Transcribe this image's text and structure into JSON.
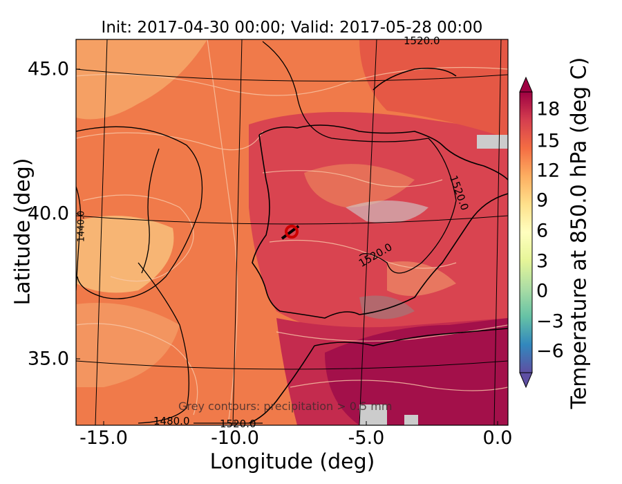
{
  "title": "Init: 2017-04-30 00:00; Valid: 2017-05-28 00:00",
  "axes": {
    "xlabel": "Longitude (deg)",
    "ylabel": "Latitude (deg)",
    "xticks": [
      "-15.0",
      "-10.0",
      "-5.0",
      "0.0"
    ],
    "yticks": [
      "45.0",
      "40.0",
      "35.0"
    ]
  },
  "colorbar": {
    "label": "Temperature at 850.0 hPa (deg C)",
    "ticks": [
      "18",
      "15",
      "12",
      "9",
      "6",
      "3",
      "0",
      "−3",
      "−6"
    ],
    "colors": [
      "#5e4fa2",
      "#3288bd",
      "#66c2a5",
      "#abdda4",
      "#e6f598",
      "#ffffbf",
      "#fee08b",
      "#fdae61",
      "#f46d43",
      "#d53e4f",
      "#9e0142"
    ]
  },
  "contour_labels": [
    "1520.0",
    "1520.0",
    "1520.0",
    "1440.0",
    "1480.0",
    "1520.0"
  ],
  "annotation": "Grey contours: precipitation > 0.5 mm",
  "marker": {
    "name": "location-marker",
    "color": "#cc0000"
  }
}
